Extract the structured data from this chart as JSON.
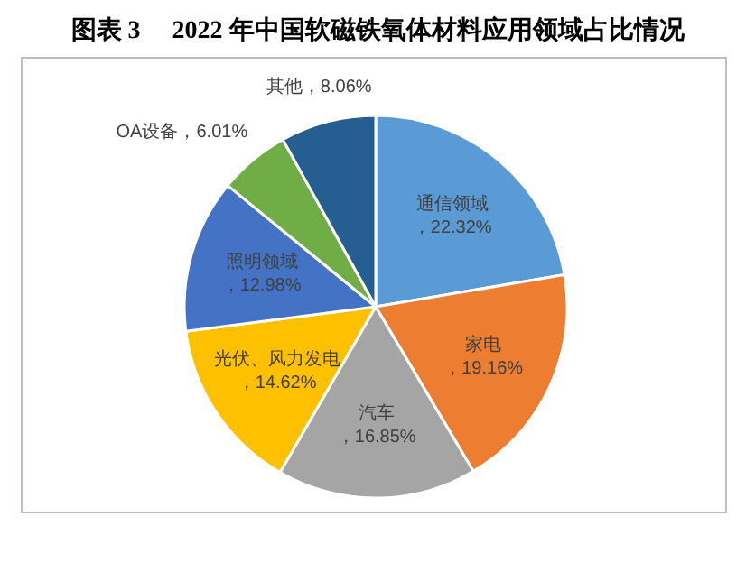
{
  "chart_data": {
    "type": "pie",
    "title": "图表 3　 2022 年中国软磁铁氧体材料应用领域占比情况",
    "categories": [
      "通信领域",
      "家电",
      "汽车",
      "光伏、风力发电",
      "照明领域",
      "OA设备",
      "其他"
    ],
    "values": [
      22.32,
      19.16,
      16.85,
      14.62,
      12.98,
      6.01,
      8.06
    ],
    "value_labels": [
      "，22.32%",
      "，19.16%",
      "，16.85%",
      "，14.62%",
      "，12.98%",
      "，6.01%",
      "，8.06%"
    ],
    "colors": [
      "#5b9bd5",
      "#ed7d31",
      "#a5a5a5",
      "#ffc000",
      "#4472c4",
      "#70ad47",
      "#255e91"
    ]
  }
}
